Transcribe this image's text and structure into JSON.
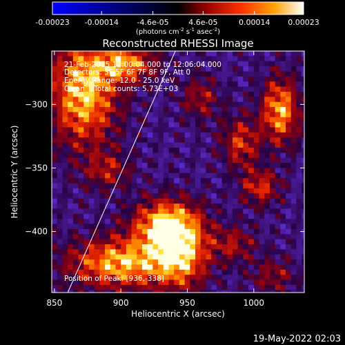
{
  "colorbar": {
    "ticks": [
      "-0.00023",
      "-0.00014",
      "-4.6e-05",
      "4.6e-05",
      "0.00014",
      "0.00023"
    ],
    "tick_values": [
      -0.00023,
      -0.00014,
      -4.6e-05,
      4.6e-05,
      0.00014,
      0.00023
    ],
    "range": [
      -0.00023,
      0.00023
    ],
    "unit_main": "(photons cm",
    "unit_sup1": "-2",
    "unit_mid1": " s",
    "unit_sup2": "-1",
    "unit_mid2": " asec",
    "unit_sup3": "-2",
    "unit_end": ")"
  },
  "info": {
    "line1": "21-Feb-2015 12:00:04.000 to 12:06:04.000",
    "line2": "Detectors: 3F 5F 6F 7F 8F 9F, Att 0",
    "line3": "Energy Range: 12.0 - 25.0 keV",
    "line4": "Clean    Total counts: 5.73E+03",
    "peak": "Position of Peak: [936,-338]"
  },
  "footer": {
    "timestamp": "19-May-2022 02:03"
  },
  "chart_data": {
    "type": "heatmap",
    "title": "Reconstructed RHESSI Image",
    "xlabel": "Heliocentric X (arcsec)",
    "ylabel": "Heliocentric Y (arcsec)",
    "xlim": [
      848,
      1038
    ],
    "ylim": [
      -448,
      -258
    ],
    "xticks": [
      850,
      900,
      950,
      1000
    ],
    "yticks": [
      -300,
      -350,
      -400
    ],
    "colormap": "red-temperature with blue negatives",
    "grid": false,
    "limb_line": {
      "from": [
        860,
        -448
      ],
      "to": [
        941,
        -258
      ],
      "color": "#ffffff"
    },
    "peak_position": [
      936,
      -338
    ],
    "blobs": [
      {
        "x": 872,
        "y": -290,
        "sx": 18,
        "sy": 30,
        "amp": 1.0
      },
      {
        "x": 905,
        "y": -268,
        "sx": 15,
        "sy": 10,
        "amp": 0.8
      },
      {
        "x": 935,
        "y": -395,
        "sx": 18,
        "sy": 14,
        "amp": 1.05
      },
      {
        "x": 900,
        "y": -425,
        "sx": 28,
        "sy": 14,
        "amp": 0.95
      },
      {
        "x": 945,
        "y": -420,
        "sx": 14,
        "sy": 18,
        "amp": 0.8
      },
      {
        "x": 1020,
        "y": -305,
        "sx": 10,
        "sy": 18,
        "amp": 0.9
      },
      {
        "x": 990,
        "y": -330,
        "sx": 10,
        "sy": 14,
        "amp": 0.6
      },
      {
        "x": 1005,
        "y": -365,
        "sx": 10,
        "sy": 10,
        "amp": 0.6
      },
      {
        "x": 890,
        "y": -352,
        "sx": 12,
        "sy": 10,
        "amp": 0.45
      },
      {
        "x": 960,
        "y": -295,
        "sx": 10,
        "sy": 12,
        "amp": 0.45
      },
      {
        "x": 985,
        "y": -410,
        "sx": 12,
        "sy": 10,
        "amp": 0.45
      },
      {
        "x": 1015,
        "y": -435,
        "sx": 12,
        "sy": 10,
        "amp": 0.4
      }
    ]
  }
}
